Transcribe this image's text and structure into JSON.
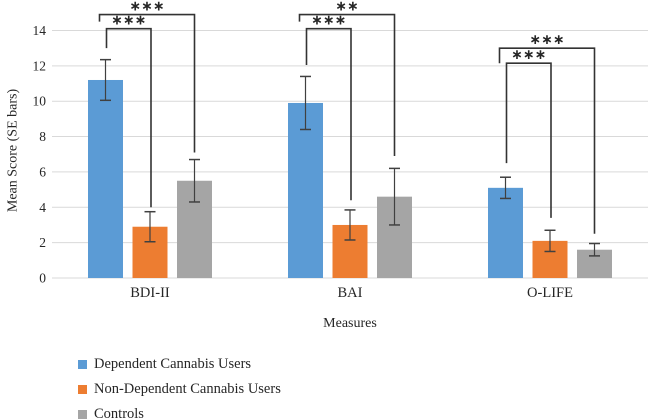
{
  "chart_data": {
    "type": "bar",
    "title": "",
    "xlabel": "Measures",
    "ylabel": "Mean Score (SE bars)",
    "ylim": [
      0,
      14
    ],
    "y_ticks": [
      0,
      2,
      4,
      6,
      8,
      10,
      12,
      14
    ],
    "grid": true,
    "legend_position": "bottom-left",
    "categories": [
      "BDI-II",
      "BAI",
      "O-LIFE"
    ],
    "series": [
      {
        "name": "Dependent Cannabis Users",
        "color": "#5B9BD5",
        "values": [
          11.2,
          9.9,
          5.1
        ],
        "se": [
          1.15,
          1.5,
          0.6
        ]
      },
      {
        "name": "Non-Dependent Cannabis Users",
        "color": "#ED7D31",
        "values": [
          2.9,
          3.0,
          2.1
        ],
        "se": [
          0.85,
          0.85,
          0.6
        ]
      },
      {
        "name": "Controls",
        "color": "#A5A5A5",
        "values": [
          5.5,
          4.6,
          1.6
        ],
        "se": [
          1.2,
          1.6,
          0.35
        ]
      }
    ],
    "significance_brackets": [
      {
        "category": "BDI-II",
        "from": "Dependent Cannabis Users",
        "to": "Non-Dependent Cannabis Users",
        "label": "***",
        "y": 14.1,
        "left_drop_to": 13.0,
        "right_drop_to": 4.0
      },
      {
        "category": "BDI-II",
        "from": "Dependent Cannabis Users",
        "to": "Controls",
        "label": "***",
        "y": 14.9,
        "left_drop_to": 14.5,
        "right_drop_to": 7.1
      },
      {
        "category": "BAI",
        "from": "Dependent Cannabis Users",
        "to": "Non-Dependent Cannabis Users",
        "label": "***",
        "y": 14.1,
        "left_drop_to": 12.05,
        "right_drop_to": 4.4
      },
      {
        "category": "BAI",
        "from": "Dependent Cannabis Users",
        "to": "Controls",
        "label": "**",
        "y": 14.9,
        "left_drop_to": 14.5,
        "right_drop_to": 6.9
      },
      {
        "category": "O-LIFE",
        "from": "Dependent Cannabis Users",
        "to": "Non-Dependent Cannabis Users",
        "label": "***",
        "y": 12.15,
        "left_drop_to": 6.5,
        "right_drop_to": 3.4
      },
      {
        "category": "O-LIFE",
        "from": "Dependent Cannabis Users",
        "to": "Controls",
        "label": "***",
        "y": 13.0,
        "left_drop_to": 12.15,
        "right_drop_to": 2.5
      }
    ],
    "style_colors": {
      "gridline": "#D9D9D9",
      "error_bar": "#404040",
      "bracket": "#333333",
      "text": "#262626"
    }
  }
}
